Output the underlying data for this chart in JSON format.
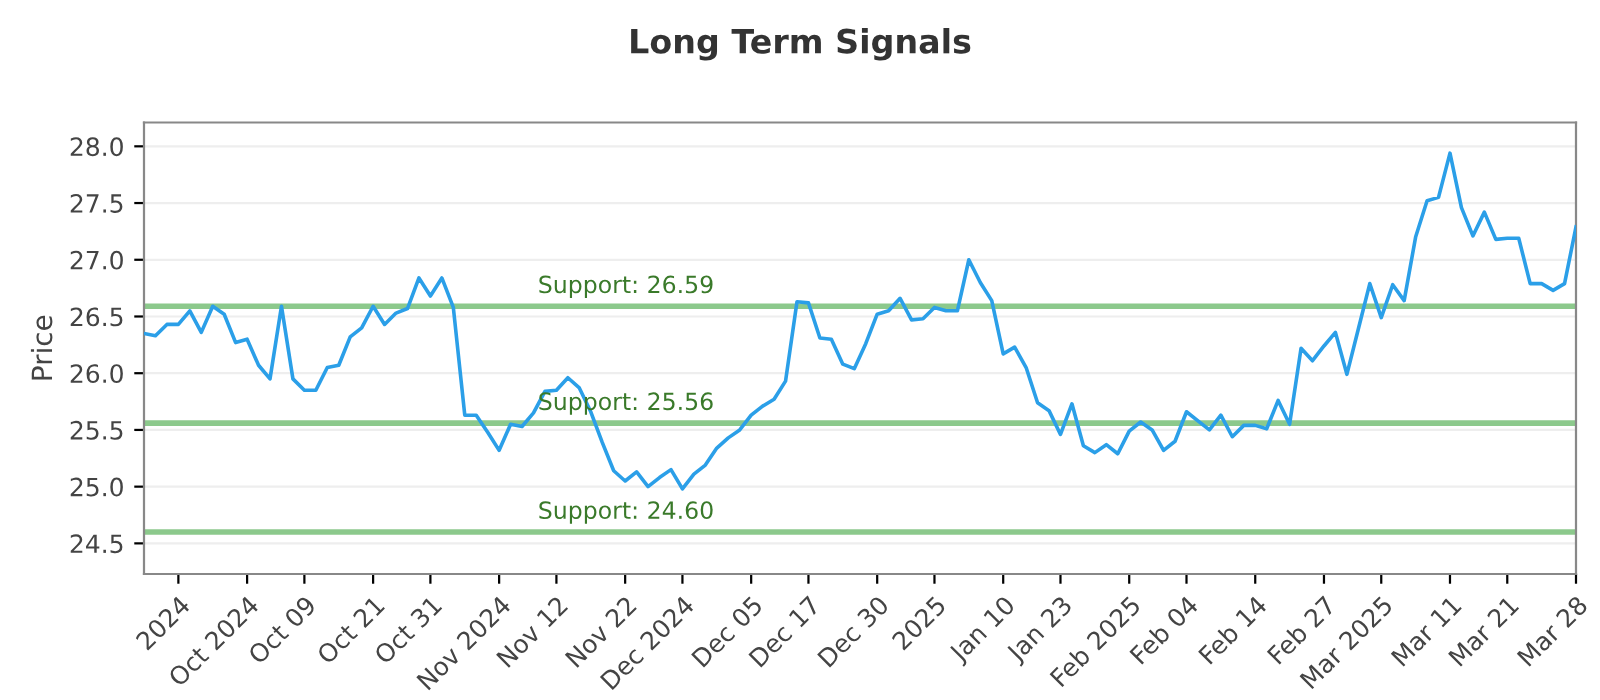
{
  "chart_data": {
    "type": "line",
    "title": "Long Term Signals",
    "ylabel": "Price",
    "categories": [
      null,
      null,
      null,
      "2024",
      null,
      null,
      null,
      null,
      null,
      "Oct 2024",
      null,
      null,
      null,
      null,
      "Oct 09",
      null,
      null,
      null,
      null,
      null,
      "Oct 21",
      null,
      null,
      null,
      null,
      "Oct 31",
      null,
      null,
      null,
      null,
      null,
      "Nov 2024",
      null,
      null,
      null,
      null,
      "Nov 12",
      null,
      null,
      null,
      null,
      null,
      "Nov 22",
      null,
      null,
      null,
      null,
      "Dec 2024",
      null,
      null,
      null,
      null,
      null,
      "Dec 05",
      null,
      null,
      null,
      null,
      "Dec 17",
      null,
      null,
      null,
      null,
      null,
      "Dec 30",
      null,
      null,
      null,
      null,
      "2025",
      null,
      null,
      null,
      null,
      null,
      "Jan 10",
      null,
      null,
      null,
      null,
      "Jan 23",
      null,
      null,
      null,
      null,
      null,
      "Feb 2025",
      null,
      null,
      null,
      null,
      "Feb 04",
      null,
      null,
      null,
      null,
      null,
      "Feb 14",
      null,
      null,
      null,
      null,
      null,
      "Feb 27",
      null,
      null,
      null,
      null,
      "Mar 2025",
      null,
      null,
      null,
      null,
      null,
      "Mar 11",
      null,
      null,
      null,
      null,
      "Mar 21",
      null,
      null,
      null,
      null,
      null,
      "Mar 28"
    ],
    "series": [
      {
        "color": "#2b9fe8",
        "values": [
          26.35,
          26.33,
          26.43,
          26.43,
          26.55,
          26.36,
          26.59,
          26.52,
          26.27,
          26.3,
          26.07,
          25.95,
          26.59,
          25.95,
          25.85,
          25.85,
          26.05,
          26.07,
          26.32,
          26.4,
          26.59,
          26.43,
          26.53,
          26.57,
          26.84,
          26.68,
          26.84,
          26.58,
          25.63,
          25.63,
          25.48,
          25.32,
          25.55,
          25.53,
          25.65,
          25.84,
          25.85,
          25.96,
          25.87,
          25.66,
          25.39,
          25.14,
          25.05,
          25.13,
          25.0,
          25.08,
          25.15,
          24.98,
          25.11,
          25.19,
          25.34,
          25.43,
          25.5,
          25.63,
          25.71,
          25.77,
          25.93,
          26.63,
          26.62,
          26.31,
          26.3,
          26.08,
          26.04,
          26.26,
          26.52,
          26.55,
          26.66,
          26.47,
          26.48,
          26.58,
          26.55,
          26.55,
          27.0,
          26.8,
          26.64,
          26.17,
          26.23,
          26.05,
          25.74,
          25.67,
          25.46,
          25.73,
          25.36,
          25.3,
          25.37,
          25.29,
          25.49,
          25.57,
          25.5,
          25.32,
          25.4,
          25.66,
          25.58,
          25.5,
          25.63,
          25.44,
          25.54,
          25.54,
          25.51,
          25.76,
          25.55,
          26.22,
          26.11,
          26.24,
          26.36,
          25.99,
          26.39,
          26.79,
          26.49,
          26.78,
          26.64,
          27.2,
          27.52,
          27.55,
          27.94,
          27.46,
          27.21,
          27.42,
          27.18,
          27.19,
          27.19,
          26.79,
          26.79,
          26.73,
          26.79,
          27.29
        ]
      }
    ],
    "ylim": [
      24.23,
      28.21
    ],
    "yticks": [
      {
        "value": 24.5,
        "label": "24.5"
      },
      {
        "value": 25.0,
        "label": "25.0"
      },
      {
        "value": 25.5,
        "label": "25.5"
      },
      {
        "value": 26.0,
        "label": "26.0"
      },
      {
        "value": 26.5,
        "label": "26.5"
      },
      {
        "value": 27.0,
        "label": "27.0"
      },
      {
        "value": 27.5,
        "label": "27.5"
      },
      {
        "value": 28.0,
        "label": "28.0"
      }
    ],
    "grid": "y",
    "legend": false,
    "marker": "none",
    "line_style": "solid",
    "ref_lines": [
      {
        "axis": "y",
        "value": 26.59,
        "label": "Support: 26.59",
        "color": "#8cc98c"
      },
      {
        "axis": "y",
        "value": 25.56,
        "label": "Support: 25.56",
        "color": "#8cc98c"
      },
      {
        "axis": "y",
        "value": 24.6,
        "label": "Support: 24.60",
        "color": "#8cc98c"
      }
    ]
  }
}
